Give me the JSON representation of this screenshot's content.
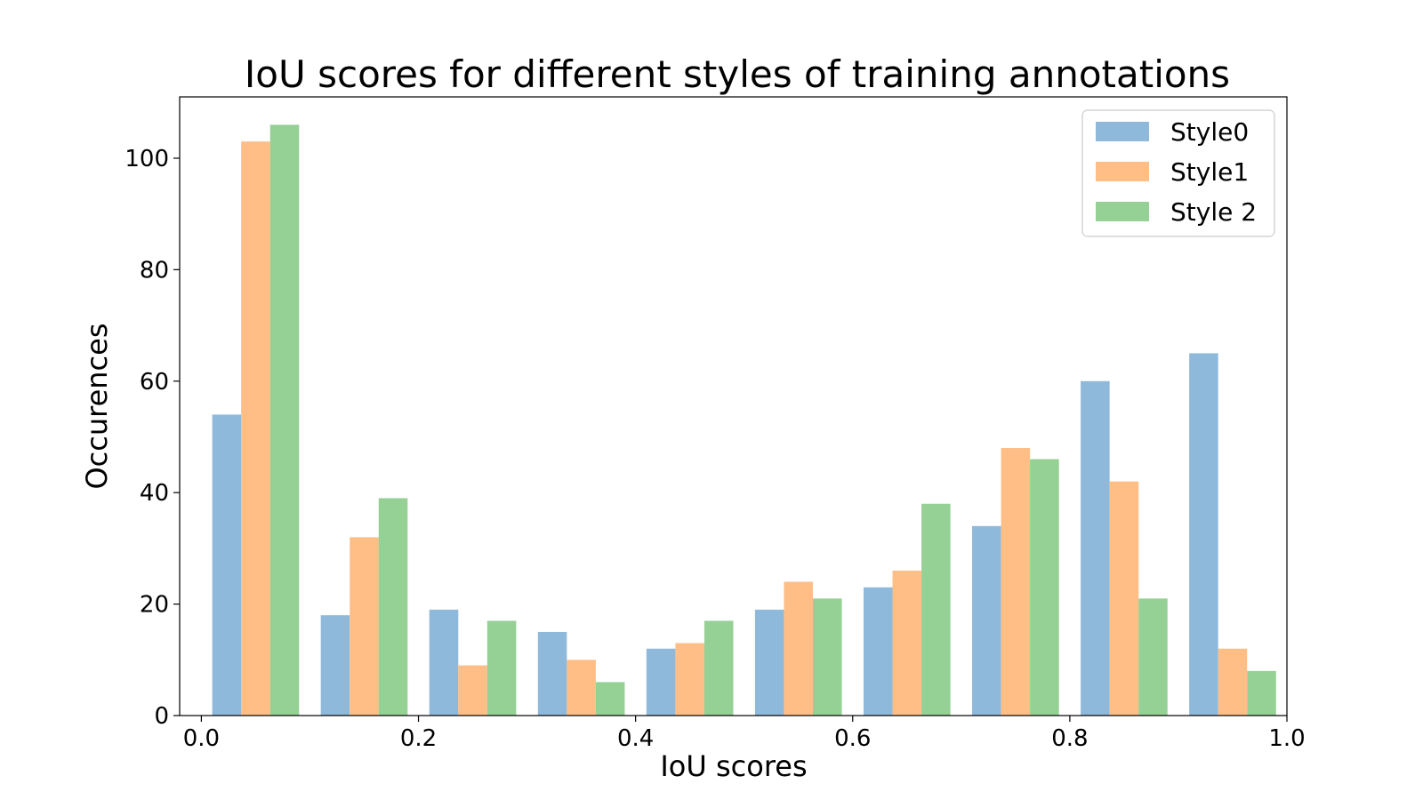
{
  "chart_data": {
    "type": "bar",
    "title": "IoU scores for different styles of training annotations",
    "xlabel": "IoU scores",
    "ylabel": "Occurences",
    "xlim": [
      -0.02,
      1.0
    ],
    "ylim": [
      0,
      111
    ],
    "xticks": [
      0.0,
      0.2,
      0.4,
      0.6,
      0.8,
      1.0
    ],
    "xtick_labels": [
      "0.0",
      "0.2",
      "0.4",
      "0.6",
      "0.8",
      "1.0"
    ],
    "yticks": [
      0,
      20,
      40,
      60,
      80,
      100
    ],
    "ytick_labels": [
      "0",
      "20",
      "40",
      "60",
      "80",
      "100"
    ],
    "bin_edges": [
      0.0,
      0.1,
      0.2,
      0.3,
      0.4,
      0.5,
      0.6,
      0.7,
      0.8,
      0.9,
      1.0
    ],
    "grid": false,
    "legend_position": "top-right",
    "series": [
      {
        "name": "Style0",
        "color": "#8fb9da",
        "values": [
          54,
          18,
          19,
          15,
          12,
          19,
          23,
          34,
          60,
          65
        ]
      },
      {
        "name": "Style1",
        "color": "#ffbe86",
        "values": [
          103,
          32,
          9,
          10,
          13,
          24,
          26,
          48,
          42,
          12
        ]
      },
      {
        "name": "Style 2",
        "color": "#95d095",
        "values": [
          106,
          39,
          17,
          6,
          17,
          21,
          38,
          46,
          21,
          8
        ]
      }
    ]
  }
}
